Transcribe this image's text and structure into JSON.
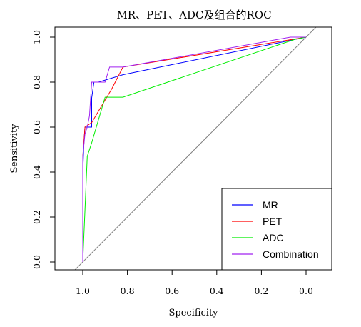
{
  "chart_data": {
    "type": "line",
    "title": "MR、PET、ADC及组合的ROC",
    "xlabel": "Specificity",
    "ylabel": "Sensitivity",
    "xlim": [
      1.0,
      0.0
    ],
    "ylim": [
      0.0,
      1.0
    ],
    "x_reversed": true,
    "xticks": [
      1.0,
      0.8,
      0.6,
      0.4,
      0.2,
      0.0
    ],
    "xtick_labels": [
      "1.0",
      "0.8",
      "0.6",
      "0.4",
      "0.2",
      "0.0"
    ],
    "yticks": [
      0.0,
      0.2,
      0.4,
      0.6,
      0.8,
      1.0
    ],
    "ytick_labels": [
      "0.0",
      "0.2",
      "0.4",
      "0.6",
      "0.8",
      "1.0"
    ],
    "grid": false,
    "legend_position": "bottom-right",
    "reference_line": {
      "color": "#808080"
    },
    "series": [
      {
        "name": "MR",
        "color": "#0000ff",
        "points": [
          [
            1.0,
            0.0
          ],
          [
            1.0,
            0.4
          ],
          [
            0.995,
            0.53
          ],
          [
            0.99,
            0.6
          ],
          [
            0.96,
            0.6
          ],
          [
            0.96,
            0.73
          ],
          [
            0.95,
            0.8
          ],
          [
            0.93,
            0.8
          ],
          [
            0.82,
            0.833
          ],
          [
            0.0,
            1.0
          ]
        ]
      },
      {
        "name": "PET",
        "color": "#ff0000",
        "points": [
          [
            1.0,
            0.0
          ],
          [
            1.0,
            0.47
          ],
          [
            0.99,
            0.6
          ],
          [
            0.96,
            0.62
          ],
          [
            0.93,
            0.67
          ],
          [
            0.87,
            0.77
          ],
          [
            0.82,
            0.867
          ],
          [
            0.0,
            1.0
          ]
        ]
      },
      {
        "name": "ADC",
        "color": "#00ee00",
        "points": [
          [
            1.0,
            0.0
          ],
          [
            0.98,
            0.47
          ],
          [
            0.96,
            0.53
          ],
          [
            0.9,
            0.733
          ],
          [
            0.82,
            0.733
          ],
          [
            0.05,
            0.99
          ],
          [
            0.0,
            1.0
          ]
        ]
      },
      {
        "name": "Combination",
        "color": "#a020f0",
        "points": [
          [
            1.0,
            0.0
          ],
          [
            1.0,
            0.47
          ],
          [
            0.99,
            0.57
          ],
          [
            0.98,
            0.6
          ],
          [
            0.97,
            0.65
          ],
          [
            0.96,
            0.8
          ],
          [
            0.9,
            0.8
          ],
          [
            0.88,
            0.867
          ],
          [
            0.82,
            0.867
          ],
          [
            0.07,
            1.0
          ],
          [
            0.0,
            1.0
          ]
        ]
      }
    ]
  }
}
